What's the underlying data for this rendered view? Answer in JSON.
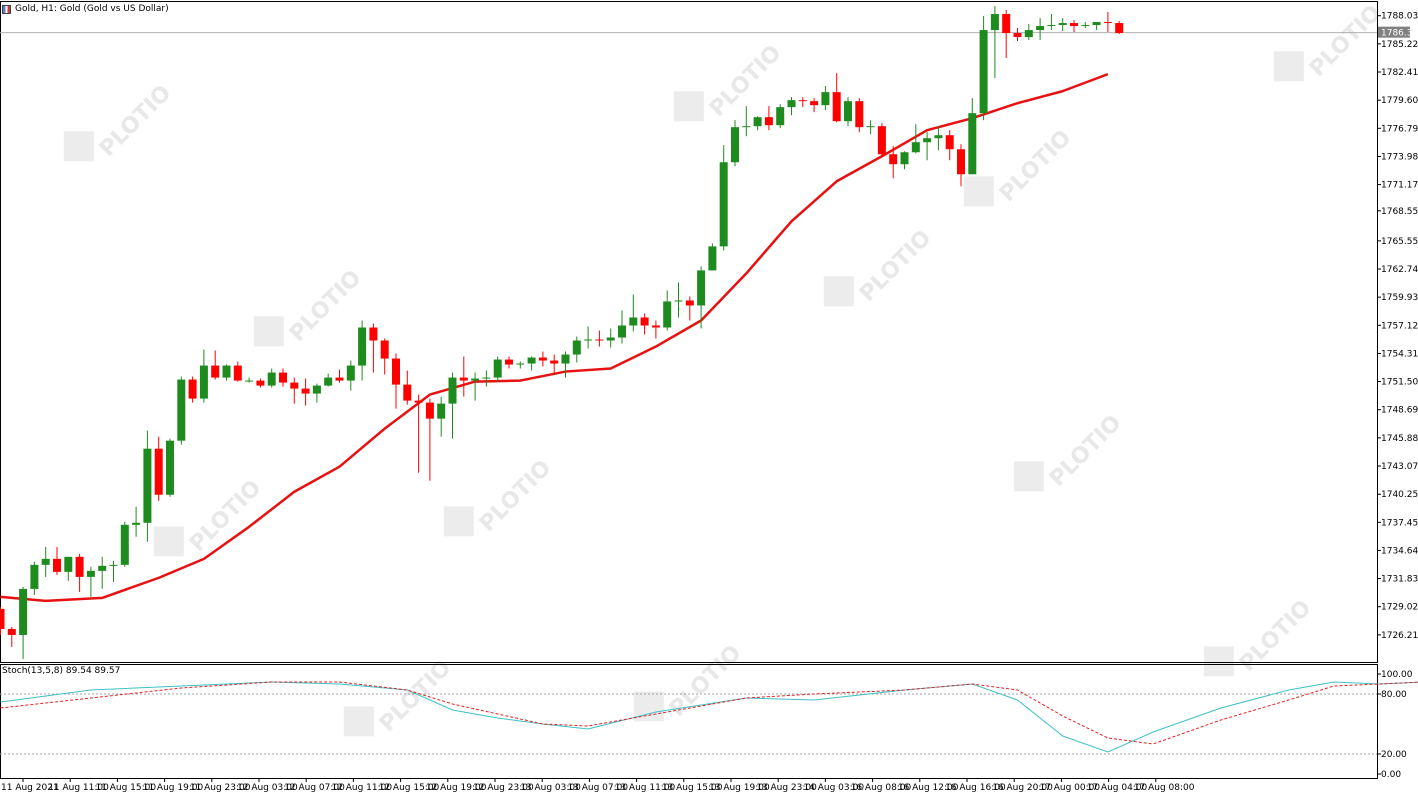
{
  "header": {
    "title": "Gold, H1:  Gold (Gold vs US Dollar)"
  },
  "indicator": {
    "label": "Stoch(13,5,8) 89.54 89.57"
  },
  "colors": {
    "bull": "#1e8b1e",
    "bear": "#ff0000",
    "ma": "#e81010",
    "stoch_main": "#40c0c8",
    "stoch_signal": "#e82020",
    "grid": "#000000"
  },
  "chart_data": [
    {
      "type": "candlestick",
      "price_axis_ticks": [
        "1788.03",
        "1785.22",
        "1782.41",
        "1779.60",
        "1776.79",
        "1773.98",
        "1771.17",
        "1768.55",
        "1765.55",
        "1762.74",
        "1759.93",
        "1757.12",
        "1754.31",
        "1751.50",
        "1748.69",
        "1745.88",
        "1743.07",
        "1740.25",
        "1737.45",
        "1734.64",
        "1731.83",
        "1729.02",
        "1726.21"
      ],
      "current_price": "1786.34",
      "time_axis_labels": [
        "11 Aug 2021",
        "11 Aug 11:00",
        "11 Aug 15:00",
        "11 Aug 19:00",
        "11 Aug 23:00",
        "12 Aug 03:00",
        "12 Aug 07:00",
        "12 Aug 11:00",
        "12 Aug 15:00",
        "12 Aug 19:00",
        "12 Aug 23:00",
        "13 Aug 03:00",
        "13 Aug 07:00",
        "13 Aug 11:00",
        "13 Aug 15:00",
        "13 Aug 19:00",
        "13 Aug 23:00",
        "14 Aug 03:00",
        "16 Aug 08:00",
        "16 Aug 12:00",
        "16 Aug 16:00",
        "16 Aug 20:00",
        "17 Aug 00:00",
        "17 Aug 04:00",
        "17 Aug 08:00"
      ],
      "ylim": [
        1723.5,
        1789.5
      ],
      "ohlc": [
        [
          1728.8,
          1729.0,
          1726.2,
          1726.8
        ],
        [
          1726.8,
          1727.0,
          1725.0,
          1726.2
        ],
        [
          1726.2,
          1731.0,
          1723.8,
          1730.8
        ],
        [
          1730.8,
          1733.5,
          1730.2,
          1733.2
        ],
        [
          1733.2,
          1735.0,
          1732.0,
          1733.8
        ],
        [
          1733.8,
          1735.0,
          1732.2,
          1732.5
        ],
        [
          1732.5,
          1734.0,
          1731.6,
          1734.0
        ],
        [
          1734.0,
          1734.3,
          1730.5,
          1732.0
        ],
        [
          1732.0,
          1733.0,
          1730.0,
          1732.6
        ],
        [
          1732.6,
          1734.0,
          1730.8,
          1733.1
        ],
        [
          1733.1,
          1733.6,
          1731.5,
          1733.2
        ],
        [
          1733.2,
          1737.5,
          1733.0,
          1737.2
        ],
        [
          1737.2,
          1739.0,
          1736.0,
          1737.4
        ],
        [
          1737.4,
          1746.6,
          1735.5,
          1744.8
        ],
        [
          1744.8,
          1746.0,
          1739.6,
          1740.2
        ],
        [
          1740.2,
          1745.8,
          1740.0,
          1745.6
        ],
        [
          1745.6,
          1752.0,
          1745.2,
          1751.7
        ],
        [
          1751.7,
          1752.0,
          1749.4,
          1749.8
        ],
        [
          1749.8,
          1754.7,
          1749.4,
          1753.1
        ],
        [
          1753.1,
          1754.6,
          1751.7,
          1751.9
        ],
        [
          1751.9,
          1753.2,
          1751.6,
          1753.1
        ],
        [
          1753.1,
          1753.5,
          1751.5,
          1751.6
        ],
        [
          1751.6,
          1751.9,
          1751.4,
          1751.6
        ],
        [
          1751.6,
          1751.8,
          1750.9,
          1751.1
        ],
        [
          1751.1,
          1752.8,
          1750.9,
          1752.4
        ],
        [
          1752.4,
          1752.8,
          1751.0,
          1751.4
        ],
        [
          1751.4,
          1751.9,
          1749.3,
          1750.8
        ],
        [
          1750.8,
          1751.8,
          1749.1,
          1750.3
        ],
        [
          1750.3,
          1751.3,
          1749.4,
          1751.1
        ],
        [
          1751.1,
          1752.3,
          1751.0,
          1751.9
        ],
        [
          1751.9,
          1752.7,
          1751.4,
          1751.6
        ],
        [
          1751.6,
          1753.6,
          1750.6,
          1753.1
        ],
        [
          1753.1,
          1757.6,
          1751.6,
          1756.9
        ],
        [
          1756.9,
          1757.3,
          1752.4,
          1755.6
        ],
        [
          1755.6,
          1755.8,
          1752.2,
          1753.8
        ],
        [
          1753.8,
          1754.3,
          1748.8,
          1751.2
        ],
        [
          1751.2,
          1752.6,
          1749.2,
          1749.6
        ],
        [
          1749.6,
          1750.2,
          1742.4,
          1749.4
        ],
        [
          1749.4,
          1749.8,
          1741.6,
          1747.8
        ],
        [
          1747.8,
          1750.0,
          1746.0,
          1749.3
        ],
        [
          1749.3,
          1752.4,
          1745.8,
          1751.9
        ],
        [
          1751.9,
          1754.0,
          1750.0,
          1751.6
        ],
        [
          1751.6,
          1752.4,
          1749.6,
          1751.8
        ],
        [
          1751.8,
          1752.6,
          1751.0,
          1751.9
        ],
        [
          1751.9,
          1754.0,
          1751.5,
          1753.7
        ],
        [
          1753.7,
          1754.0,
          1752.8,
          1753.2
        ],
        [
          1753.2,
          1753.5,
          1752.8,
          1753.3
        ],
        [
          1753.3,
          1754.0,
          1752.6,
          1753.9
        ],
        [
          1753.9,
          1754.5,
          1753.0,
          1753.6
        ],
        [
          1753.6,
          1754.2,
          1752.2,
          1753.3
        ],
        [
          1753.3,
          1754.5,
          1751.9,
          1754.2
        ],
        [
          1754.2,
          1756.0,
          1753.4,
          1755.6
        ],
        [
          1755.6,
          1757.0,
          1754.8,
          1755.7
        ],
        [
          1755.7,
          1756.6,
          1755.0,
          1755.6
        ],
        [
          1755.6,
          1756.8,
          1754.9,
          1755.9
        ],
        [
          1755.9,
          1758.6,
          1755.3,
          1757.1
        ],
        [
          1757.1,
          1760.2,
          1756.5,
          1757.9
        ],
        [
          1757.9,
          1758.3,
          1756.2,
          1757.1
        ],
        [
          1757.1,
          1757.6,
          1755.8,
          1756.9
        ],
        [
          1756.9,
          1760.6,
          1756.6,
          1759.5
        ],
        [
          1759.5,
          1761.4,
          1757.9,
          1759.6
        ],
        [
          1759.6,
          1760.0,
          1757.6,
          1759.1
        ],
        [
          1759.1,
          1763.0,
          1756.8,
          1762.6
        ],
        [
          1762.6,
          1765.3,
          1762.6,
          1765.0
        ],
        [
          1765.0,
          1775.1,
          1764.6,
          1773.4
        ],
        [
          1773.4,
          1777.6,
          1773.0,
          1776.9
        ],
        [
          1776.9,
          1779.0,
          1776.0,
          1777.0
        ],
        [
          1777.0,
          1778.0,
          1776.6,
          1777.9
        ],
        [
          1777.9,
          1779.0,
          1776.6,
          1777.1
        ],
        [
          1777.1,
          1779.2,
          1776.8,
          1778.9
        ],
        [
          1778.9,
          1779.9,
          1778.1,
          1779.6
        ],
        [
          1779.6,
          1779.9,
          1778.9,
          1779.5
        ],
        [
          1779.5,
          1779.8,
          1778.4,
          1779.1
        ],
        [
          1779.1,
          1781.0,
          1778.6,
          1780.4
        ],
        [
          1780.4,
          1782.3,
          1777.4,
          1777.5
        ],
        [
          1777.5,
          1779.9,
          1777.0,
          1779.5
        ],
        [
          1779.5,
          1779.8,
          1776.4,
          1776.9
        ],
        [
          1776.9,
          1777.6,
          1776.2,
          1777.0
        ],
        [
          1777.0,
          1777.3,
          1773.9,
          1774.2
        ],
        [
          1774.2,
          1775.0,
          1771.8,
          1773.2
        ],
        [
          1773.2,
          1774.5,
          1772.7,
          1774.4
        ],
        [
          1774.4,
          1777.2,
          1774.3,
          1775.4
        ],
        [
          1775.4,
          1776.4,
          1773.6,
          1775.8
        ],
        [
          1775.8,
          1777.0,
          1774.6,
          1776.1
        ],
        [
          1776.1,
          1776.6,
          1773.6,
          1774.7
        ],
        [
          1774.7,
          1775.2,
          1771.0,
          1772.2
        ],
        [
          1772.2,
          1779.8,
          1772.2,
          1778.3
        ],
        [
          1778.3,
          1788.0,
          1777.6,
          1786.6
        ],
        [
          1786.6,
          1789.0,
          1781.8,
          1788.2
        ],
        [
          1788.2,
          1788.6,
          1783.8,
          1786.3
        ],
        [
          1786.3,
          1786.8,
          1785.5,
          1785.9
        ],
        [
          1785.9,
          1787.2,
          1785.6,
          1786.6
        ],
        [
          1786.6,
          1787.8,
          1785.6,
          1787.0
        ],
        [
          1787.0,
          1788.2,
          1786.6,
          1787.1
        ],
        [
          1787.1,
          1787.8,
          1786.5,
          1787.3
        ],
        [
          1787.3,
          1787.6,
          1786.4,
          1787.0
        ],
        [
          1787.0,
          1787.4,
          1786.8,
          1787.1
        ],
        [
          1787.1,
          1787.3,
          1786.6,
          1787.4
        ],
        [
          1787.4,
          1788.4,
          1786.4,
          1787.3
        ],
        [
          1787.3,
          1787.5,
          1786.2,
          1786.3
        ]
      ],
      "moving_average": [
        [
          0,
          1730.0
        ],
        [
          4,
          1729.6
        ],
        [
          9,
          1729.9
        ],
        [
          14,
          1731.9
        ],
        [
          18,
          1733.8
        ],
        [
          22,
          1737.0
        ],
        [
          26,
          1740.5
        ],
        [
          30,
          1743.0
        ],
        [
          34,
          1746.8
        ],
        [
          38,
          1750.2
        ],
        [
          42,
          1751.5
        ],
        [
          46,
          1751.6
        ],
        [
          50,
          1752.5
        ],
        [
          54,
          1752.8
        ],
        [
          58,
          1755.0
        ],
        [
          62,
          1757.6
        ],
        [
          66,
          1762.3
        ],
        [
          70,
          1767.5
        ],
        [
          74,
          1771.5
        ],
        [
          78,
          1774.0
        ],
        [
          82,
          1776.6
        ],
        [
          86,
          1777.8
        ],
        [
          90,
          1779.3
        ],
        [
          94,
          1780.5
        ],
        [
          98,
          1782.2
        ]
      ]
    },
    {
      "type": "line",
      "title": "Stoch(13,5,8) 89.54 89.57",
      "ylim": [
        0,
        100
      ],
      "y_ticks": [
        "100.00",
        "80.00",
        "20.00",
        "0.00"
      ],
      "levels": [
        80,
        20
      ],
      "series": [
        {
          "name": "Main",
          "points": [
            [
              0,
              72
            ],
            [
              8,
              84
            ],
            [
              16,
              88
            ],
            [
              24,
              92
            ],
            [
              30,
              90
            ],
            [
              36,
              84
            ],
            [
              40,
              64
            ],
            [
              44,
              56
            ],
            [
              48,
              50
            ],
            [
              52,
              45
            ],
            [
              58,
              62
            ],
            [
              66,
              76
            ],
            [
              72,
              74
            ],
            [
              80,
              84
            ],
            [
              86,
              90
            ],
            [
              90,
              74
            ],
            [
              94,
              38
            ],
            [
              98,
              22
            ],
            [
              102,
              42
            ],
            [
              108,
              66
            ],
            [
              114,
              84
            ],
            [
              118,
              92
            ],
            [
              122,
              90
            ],
            [
              126,
              92
            ]
          ]
        },
        {
          "name": "Signal",
          "points": [
            [
              0,
              66
            ],
            [
              8,
              76
            ],
            [
              16,
              86
            ],
            [
              24,
              92
            ],
            [
              30,
              92
            ],
            [
              36,
              84
            ],
            [
              40,
              70
            ],
            [
              44,
              60
            ],
            [
              48,
              50
            ],
            [
              52,
              48
            ],
            [
              58,
              60
            ],
            [
              66,
              76
            ],
            [
              72,
              80
            ],
            [
              80,
              84
            ],
            [
              86,
              90
            ],
            [
              90,
              84
            ],
            [
              94,
              58
            ],
            [
              98,
              36
            ],
            [
              102,
              30
            ],
            [
              108,
              54
            ],
            [
              114,
              74
            ],
            [
              118,
              88
            ],
            [
              122,
              90
            ],
            [
              126,
              92
            ]
          ]
        }
      ]
    }
  ]
}
